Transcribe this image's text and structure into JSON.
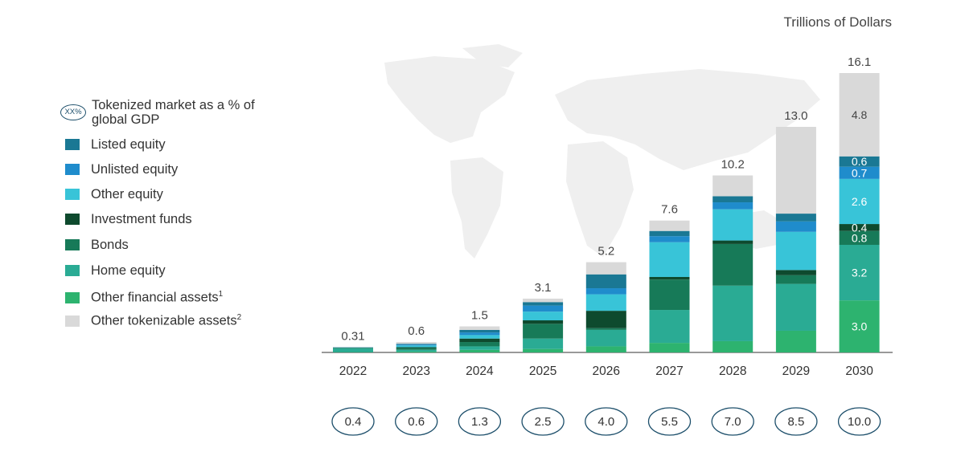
{
  "chart_data": {
    "type": "bar",
    "stacked": true,
    "unit_label": "Trillions of Dollars",
    "categories": [
      "2022",
      "2023",
      "2024",
      "2025",
      "2026",
      "2027",
      "2028",
      "2029",
      "2030"
    ],
    "totals": [
      "0.31",
      "0.6",
      "1.5",
      "3.1",
      "5.2",
      "7.6",
      "10.2",
      "13.0",
      "16.1"
    ],
    "gdp_share": {
      "legend_marker": "XX%",
      "legend_label": "Tokenized market as a % of global GDP",
      "values": [
        "0.4",
        "0.6",
        "1.3",
        "2.5",
        "4.0",
        "5.5",
        "7.0",
        "8.5",
        "10.0"
      ]
    },
    "series": [
      {
        "name": "Other financial assets",
        "sup": "1",
        "color": "#2db36f",
        "values": [
          0.02,
          0.05,
          0.15,
          0.2,
          0.35,
          0.55,
          0.65,
          1.25,
          3.0
        ],
        "labels": [
          "",
          "",
          "",
          "",
          "",
          "",
          "",
          "",
          "3.0"
        ]
      },
      {
        "name": "Home equity",
        "sup": "",
        "color": "#2aab94",
        "values": [
          0.21,
          0.1,
          0.2,
          0.6,
          0.95,
          1.9,
          3.2,
          2.7,
          3.2
        ],
        "labels": [
          "",
          "",
          "",
          "",
          "",
          "",
          "",
          "",
          "3.2"
        ]
      },
      {
        "name": "Bonds",
        "sup": "",
        "color": "#177a58",
        "values": [
          0.03,
          0.1,
          0.25,
          0.85,
          0.1,
          1.75,
          2.4,
          0.5,
          0.8
        ],
        "labels": [
          "",
          "",
          "",
          "",
          "",
          "",
          "",
          "",
          "0.8"
        ]
      },
      {
        "name": "Investment funds",
        "sup": "",
        "color": "#0e4a2e",
        "values": [
          0.01,
          0.05,
          0.2,
          0.2,
          1.0,
          0.15,
          0.2,
          0.3,
          0.4
        ],
        "labels": [
          "",
          "",
          "",
          "",
          "",
          "",
          "",
          "",
          "0.4"
        ]
      },
      {
        "name": "Other equity",
        "sup": "",
        "color": "#38c4d8",
        "values": [
          0.01,
          0.1,
          0.2,
          0.5,
          0.95,
          2.0,
          1.8,
          2.2,
          2.6
        ],
        "labels": [
          "",
          "",
          "",
          "",
          "",
          "",
          "",
          "",
          "2.6"
        ]
      },
      {
        "name": "Unlisted equity",
        "sup": "",
        "color": "#1f8ccc",
        "values": [
          0.01,
          0.05,
          0.15,
          0.35,
          0.35,
          0.35,
          0.4,
          0.6,
          0.7
        ],
        "labels": [
          "",
          "",
          "",
          "",
          "",
          "",
          "",
          "",
          "0.7"
        ]
      },
      {
        "name": "Listed equity",
        "sup": "",
        "color": "#1a7894",
        "values": [
          0.01,
          0.05,
          0.15,
          0.2,
          0.8,
          0.3,
          0.35,
          0.45,
          0.6
        ],
        "labels": [
          "",
          "",
          "",
          "",
          "",
          "",
          "",
          "",
          "0.6"
        ]
      },
      {
        "name": "Other tokenizable assets",
        "sup": "2",
        "color": "#d9d9d9",
        "values": [
          0.01,
          0.1,
          0.2,
          0.2,
          0.7,
          0.6,
          1.2,
          5.0,
          4.8
        ],
        "labels": [
          "",
          "",
          "",
          "",
          "",
          "",
          "",
          "",
          "4.8"
        ]
      }
    ],
    "ylim": [
      0,
      16.1
    ],
    "grid": false,
    "legend_position": "left"
  },
  "legend_order": [
    "Listed equity",
    "Unlisted equity",
    "Other equity",
    "Investment funds",
    "Bonds",
    "Home equity",
    "Other financial assets",
    "Other tokenizable assets"
  ]
}
